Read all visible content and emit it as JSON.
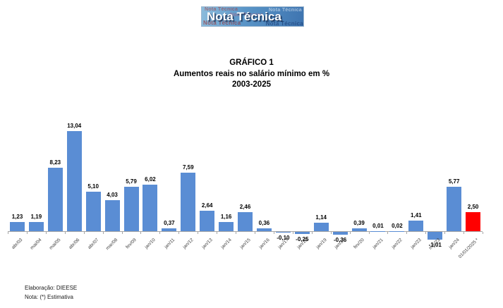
{
  "header": {
    "logo_text": "Nota Técnica"
  },
  "title": {
    "line1": "GRÁFICO 1",
    "line2": "Aumentos reais no salário mínimo em %",
    "line3": "2003-2025"
  },
  "chart_data": {
    "type": "bar",
    "title": "GRÁFICO 1",
    "subtitle": "Aumentos reais no salário mínimo em % 2003-2025",
    "categories": [
      "abr/03",
      "mai/04",
      "mai/05",
      "abr/06",
      "abr/07",
      "mar/08",
      "fev/09",
      "jan/10",
      "jan/11",
      "jan/12",
      "jan/13",
      "jan/14",
      "jan/15",
      "jan/16",
      "jan/17",
      "jan/18",
      "jan/19",
      "jan/20",
      "fev/20",
      "jan/21",
      "jan/22",
      "jan/23",
      "mai/23",
      "jan/24",
      "01/01/2025 *"
    ],
    "values": [
      1.23,
      1.19,
      8.23,
      13.04,
      5.1,
      4.03,
      5.79,
      6.02,
      0.37,
      7.59,
      2.64,
      1.16,
      2.46,
      0.36,
      -0.1,
      -0.25,
      1.14,
      -0.36,
      0.39,
      0.01,
      0.02,
      1.41,
      -1.01,
      5.77,
      2.5
    ],
    "value_labels": [
      "1,23",
      "1,19",
      "8,23",
      "13,04",
      "5,10",
      "4,03",
      "5,79",
      "6,02",
      "0,37",
      "7,59",
      "2,64",
      "1,16",
      "2,46",
      "0,36",
      "-0,10",
      "-0,25",
      "1,14",
      "-0,36",
      "0,39",
      "0,01",
      "0,02",
      "1,41",
      "-1,01",
      "5,77",
      "2,50"
    ],
    "bar_color_default": "#5A8DD4",
    "bar_color_highlight": "#FF0000",
    "highlight_index": 24,
    "xlabel": "",
    "ylabel": "",
    "ylim": [
      -1.5,
      14
    ],
    "grid": false,
    "legend": false,
    "axis_line_color": "#A6A6A6"
  },
  "footer": {
    "line1": "Elaboração: DIEESE",
    "line2": "Nota: (*) Estimativa"
  }
}
